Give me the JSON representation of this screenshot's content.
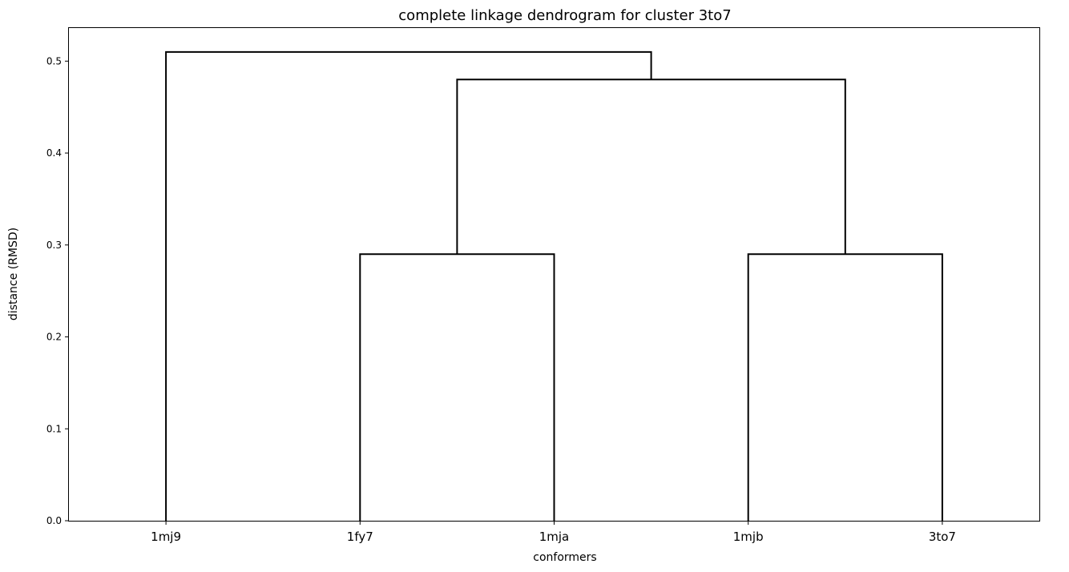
{
  "chart_data": {
    "type": "dendrogram",
    "title": "complete linkage dendrogram for cluster 3to7",
    "xlabel": "conformers",
    "ylabel": "distance (RMSD)",
    "leaves": [
      "1mj9",
      "1fy7",
      "1mja",
      "1mjb",
      "3to7"
    ],
    "yticks": [
      {
        "value": 0.0,
        "label": "0.0"
      },
      {
        "value": 0.1,
        "label": "0.1"
      },
      {
        "value": 0.2,
        "label": "0.2"
      },
      {
        "value": 0.3,
        "label": "0.3"
      },
      {
        "value": 0.4,
        "label": "0.4"
      },
      {
        "value": 0.5,
        "label": "0.5"
      }
    ],
    "ylim": [
      0,
      0.536
    ],
    "merges": [
      {
        "left": "1fy7",
        "right": "1mja",
        "height": 0.29
      },
      {
        "left": "1mjb",
        "right": "3to7",
        "height": 0.29
      },
      {
        "left": "1fy7+1mja",
        "right": "1mjb+3to7",
        "height": 0.48
      },
      {
        "left": "1mj9",
        "right": "1fy7+1mja+1mjb+3to7",
        "height": 0.51
      }
    ],
    "line_color": "#000000",
    "grid": false,
    "legend": "none"
  }
}
